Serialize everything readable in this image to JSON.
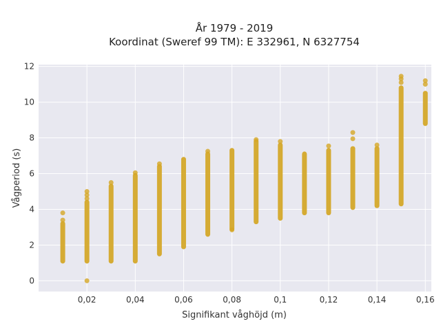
{
  "chart_data": {
    "type": "scatter",
    "title_line1": "År 1979 - 2019",
    "title_line2": "Koordinat (Sweref 99 TM): E 332961, N 6327754",
    "xlabel": "Signifikant våghöjd (m)",
    "ylabel": "Vågperiod (s)",
    "xlim": [
      0.0,
      0.1625
    ],
    "ylim": [
      -0.6,
      12.1
    ],
    "xticks": [
      0.02,
      0.04,
      0.06,
      0.08,
      0.1,
      0.12,
      0.14,
      0.16
    ],
    "xtick_labels": [
      "0,02",
      "0,04",
      "0,06",
      "0,08",
      "0,1",
      "0,12",
      "0,14",
      "0,16"
    ],
    "yticks": [
      0,
      2,
      4,
      6,
      8,
      10,
      12
    ],
    "ytick_labels": [
      "0",
      "2",
      "4",
      "6",
      "8",
      "10",
      "12"
    ],
    "grid": true,
    "marker_color": "#d4a625",
    "background_color": "#e8e8f0",
    "series": [
      {
        "columns": [
          {
            "x": 0.01,
            "y_min": 1.1,
            "y_max": 3.2,
            "outliers": [
              3.4,
              3.8
            ]
          },
          {
            "x": 0.02,
            "y_min": 1.1,
            "y_max": 4.4,
            "outliers": [
              0.0,
              4.6,
              4.8,
              5.0
            ]
          },
          {
            "x": 0.03,
            "y_min": 1.1,
            "y_max": 5.3,
            "outliers": [
              5.5
            ]
          },
          {
            "x": 0.04,
            "y_min": 1.1,
            "y_max": 5.9,
            "outliers": [
              6.05
            ]
          },
          {
            "x": 0.05,
            "y_min": 1.5,
            "y_max": 6.4,
            "outliers": [
              6.55
            ]
          },
          {
            "x": 0.06,
            "y_min": 1.9,
            "y_max": 6.8,
            "outliers": []
          },
          {
            "x": 0.07,
            "y_min": 2.6,
            "y_max": 7.1,
            "outliers": [
              7.25
            ]
          },
          {
            "x": 0.08,
            "y_min": 2.9,
            "y_max": 7.3,
            "outliers": [
              2.85
            ]
          },
          {
            "x": 0.09,
            "y_min": 3.3,
            "y_max": 7.8,
            "outliers": [
              7.9
            ]
          },
          {
            "x": 0.1,
            "y_min": 3.5,
            "y_max": 7.6,
            "outliers": [
              7.8
            ]
          },
          {
            "x": 0.11,
            "y_min": 3.8,
            "y_max": 7.1,
            "outliers": []
          },
          {
            "x": 0.12,
            "y_min": 3.8,
            "y_max": 7.3,
            "outliers": [
              7.55
            ]
          },
          {
            "x": 0.13,
            "y_min": 4.1,
            "y_max": 7.4,
            "outliers": [
              7.95,
              8.3
            ]
          },
          {
            "x": 0.14,
            "y_min": 4.2,
            "y_max": 7.4,
            "outliers": [
              7.6
            ]
          },
          {
            "x": 0.15,
            "y_min": 4.3,
            "y_max": 10.8,
            "outliers": [
              11.1,
              11.3,
              11.45
            ]
          },
          {
            "x": 0.16,
            "y_min": 8.8,
            "y_max": 10.5,
            "outliers": [
              11.0,
              11.2
            ]
          }
        ]
      }
    ]
  }
}
